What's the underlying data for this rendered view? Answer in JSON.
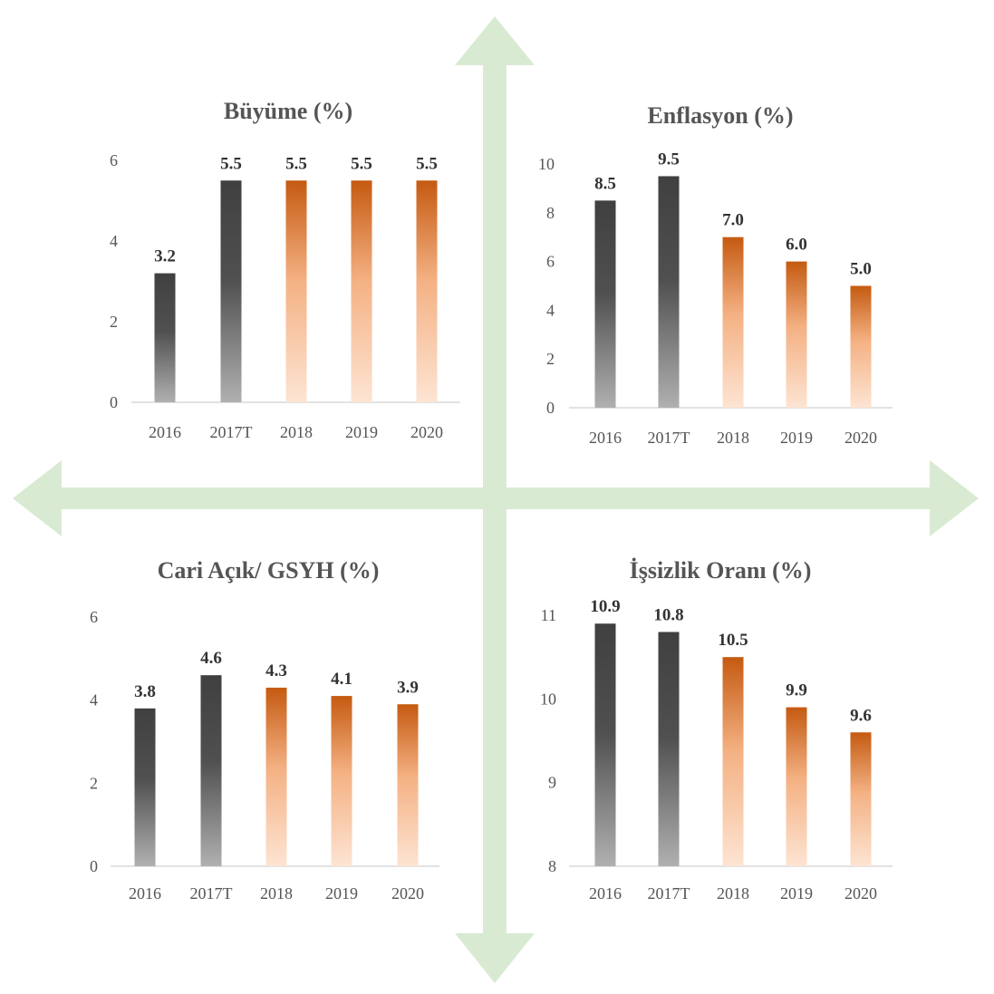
{
  "colors": {
    "arrow": "#d9ead3",
    "dark_top": "#404040",
    "dark_bottom": "#b0b0b0",
    "orange_top": "#c55a11",
    "orange_bottom": "#fde4d3",
    "axis_line": "#d9d9d9"
  },
  "chart_data": [
    {
      "type": "bar",
      "title": "Büyüme (%)",
      "categories": [
        "2016",
        "2017T",
        "2018",
        "2019",
        "2020"
      ],
      "values": [
        3.2,
        5.5,
        5.5,
        5.5,
        5.5
      ],
      "data_labels": [
        "3.2",
        "5.5",
        "5.5",
        "5.5",
        "5.5"
      ],
      "bar_style": [
        "dark",
        "dark",
        "orange",
        "orange",
        "orange"
      ],
      "ylim": [
        0,
        6
      ],
      "yticks": [
        0,
        2,
        4,
        6
      ],
      "xlabel": "",
      "ylabel": ""
    },
    {
      "type": "bar",
      "title": "Enflasyon (%)",
      "categories": [
        "2016",
        "2017T",
        "2018",
        "2019",
        "2020"
      ],
      "values": [
        8.5,
        9.5,
        7.0,
        6.0,
        5.0
      ],
      "data_labels": [
        "8.5",
        "9.5",
        "7.0",
        "6.0",
        "5.0"
      ],
      "bar_style": [
        "dark",
        "dark",
        "orange",
        "orange",
        "orange"
      ],
      "ylim": [
        0,
        10
      ],
      "yticks": [
        0,
        2,
        4,
        6,
        8,
        10
      ],
      "xlabel": "",
      "ylabel": ""
    },
    {
      "type": "bar",
      "title": "Cari Açık/ GSYH (%)",
      "categories": [
        "2016",
        "2017T",
        "2018",
        "2019",
        "2020"
      ],
      "values": [
        3.8,
        4.6,
        4.3,
        4.1,
        3.9
      ],
      "data_labels": [
        "3.8",
        "4.6",
        "4.3",
        "4.1",
        "3.9"
      ],
      "bar_style": [
        "dark",
        "dark",
        "orange",
        "orange",
        "orange"
      ],
      "ylim": [
        0,
        6
      ],
      "yticks": [
        0,
        2,
        4,
        6
      ],
      "xlabel": "",
      "ylabel": ""
    },
    {
      "type": "bar",
      "title": "İşsizlik Oranı (%)",
      "categories": [
        "2016",
        "2017T",
        "2018",
        "2019",
        "2020"
      ],
      "values": [
        10.9,
        10.8,
        10.5,
        9.9,
        9.6
      ],
      "data_labels": [
        "10.9",
        "10.8",
        "10.5",
        "9.9",
        "9.6"
      ],
      "bar_style": [
        "dark",
        "dark",
        "orange",
        "orange",
        "orange"
      ],
      "ylim": [
        8,
        11
      ],
      "yticks": [
        8,
        9,
        10,
        11
      ],
      "xlabel": "",
      "ylabel": ""
    }
  ]
}
